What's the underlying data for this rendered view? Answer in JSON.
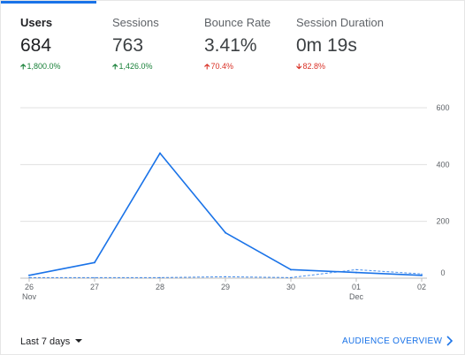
{
  "metrics": [
    {
      "label": "Users",
      "value": "684",
      "change": "1,800.0%",
      "direction": "up",
      "active": true
    },
    {
      "label": "Sessions",
      "value": "763",
      "change": "1,426.0%",
      "direction": "up",
      "active": false
    },
    {
      "label": "Bounce Rate",
      "value": "3.41%",
      "change": "70.4%",
      "direction": "up",
      "active": false
    },
    {
      "label": "Session Duration",
      "value": "0m 19s",
      "change": "82.8%",
      "direction": "down",
      "active": false
    }
  ],
  "colors": {
    "accent": "#1a73e8",
    "positive": "#188038",
    "negative": "#d93025"
  },
  "chart_data": {
    "type": "line",
    "x": [
      "26",
      "27",
      "28",
      "29",
      "30",
      "01",
      "02"
    ],
    "x_sublabels": [
      "Nov",
      "",
      "",
      "",
      "",
      "Dec",
      ""
    ],
    "series": [
      {
        "style": "solid",
        "values": [
          10,
          55,
          440,
          160,
          30,
          20,
          10
        ]
      },
      {
        "style": "dashed",
        "values": [
          2,
          2,
          2,
          5,
          2,
          30,
          15
        ]
      }
    ],
    "y_ticks": [
      "0",
      "200",
      "400",
      "600"
    ],
    "ylim": [
      0,
      600
    ],
    "grid": true
  },
  "footer": {
    "range_label": "Last 7 days",
    "link_label": "AUDIENCE OVERVIEW"
  },
  "icons": {
    "dropdown": "caret-down-icon",
    "link": "chevron-right-icon"
  }
}
